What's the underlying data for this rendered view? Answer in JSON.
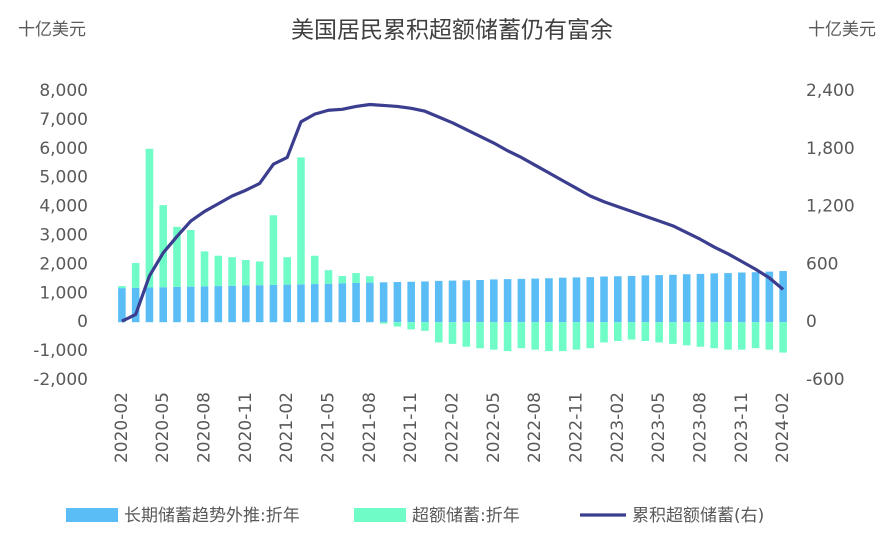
{
  "chart_data": {
    "type": "bar",
    "title": "美国居民累积超额储蓄仍有富余",
    "y_label": "十亿美元",
    "y2_label": "十亿美元",
    "categories": [
      "2020-02",
      null,
      null,
      "2020-05",
      null,
      null,
      "2020-08",
      null,
      null,
      "2020-11",
      null,
      null,
      "2021-02",
      null,
      null,
      "2021-05",
      null,
      null,
      "2021-08",
      null,
      null,
      "2021-11",
      null,
      null,
      "2022-02",
      null,
      null,
      "2022-05",
      null,
      null,
      "2022-08",
      null,
      null,
      "2022-11",
      null,
      null,
      "2023-02",
      null,
      null,
      "2023-05",
      null,
      null,
      "2023-08",
      null,
      null,
      "2023-11",
      null,
      null,
      "2024-02"
    ],
    "stacked": true,
    "series": [
      {
        "name": "长期储蓄趋势外推:折年",
        "type": "bar",
        "color": "#5bbdf5",
        "values": [
          1180,
          1190,
          1200,
          1210,
          1220,
          1230,
          1240,
          1250,
          1260,
          1270,
          1280,
          1290,
          1300,
          1310,
          1320,
          1330,
          1340,
          1360,
          1370,
          1380,
          1390,
          1400,
          1410,
          1430,
          1440,
          1450,
          1460,
          1480,
          1490,
          1500,
          1510,
          1520,
          1540,
          1550,
          1560,
          1580,
          1590,
          1600,
          1620,
          1630,
          1640,
          1660,
          1670,
          1690,
          1700,
          1720,
          1730,
          1750,
          1770
        ]
      },
      {
        "name": "超额储蓄:折年",
        "type": "bar",
        "color": "#6ffcc6",
        "values": [
          70,
          860,
          4800,
          2840,
          2080,
          1960,
          1210,
          1050,
          990,
          880,
          820,
          2410,
          950,
          4390,
          980,
          470,
          260,
          340,
          220,
          -50,
          -150,
          -250,
          -300,
          -700,
          -750,
          -850,
          -900,
          -950,
          -1000,
          -900,
          -950,
          -1000,
          -1000,
          -950,
          -900,
          -700,
          -650,
          -600,
          -650,
          -700,
          -750,
          -800,
          -850,
          -900,
          -950,
          -950,
          -900,
          -950,
          -1050
        ]
      },
      {
        "name": "累积超额储蓄(右)",
        "type": "line",
        "axis": "y2",
        "color": "#3b3d8f",
        "values": [
          10,
          80,
          480,
          720,
          890,
          1050,
          1150,
          1230,
          1310,
          1370,
          1440,
          1640,
          1710,
          2080,
          2160,
          2200,
          2210,
          2240,
          2260,
          2250,
          2240,
          2220,
          2190,
          2130,
          2070,
          2000,
          1930,
          1860,
          1780,
          1710,
          1630,
          1550,
          1470,
          1390,
          1310,
          1250,
          1200,
          1150,
          1100,
          1050,
          1000,
          930,
          860,
          780,
          710,
          630,
          550,
          460,
          340
        ]
      }
    ],
    "ylim": [
      -2000,
      8000
    ],
    "yticks": [
      {
        "value": -2000,
        "label": "-2,000"
      },
      {
        "value": -1000,
        "label": "-1,000"
      },
      0,
      {
        "value": 1000,
        "label": "1,000"
      },
      {
        "value": 2000,
        "label": "2,000"
      },
      {
        "value": 3000,
        "label": "3,000"
      },
      {
        "value": 4000,
        "label": "4,000"
      },
      {
        "value": 5000,
        "label": "5,000"
      },
      {
        "value": 6000,
        "label": "6,000"
      },
      {
        "value": 7000,
        "label": "7,000"
      },
      {
        "value": 8000,
        "label": "8,000"
      }
    ],
    "y2lim": [
      -600,
      2400
    ],
    "y2ticks": [
      -600,
      0,
      600,
      {
        "value": 1200,
        "label": "1,200"
      },
      {
        "value": 1800,
        "label": "1,800"
      },
      {
        "value": 2400,
        "label": "2,400"
      }
    ],
    "legend": "bottom"
  }
}
